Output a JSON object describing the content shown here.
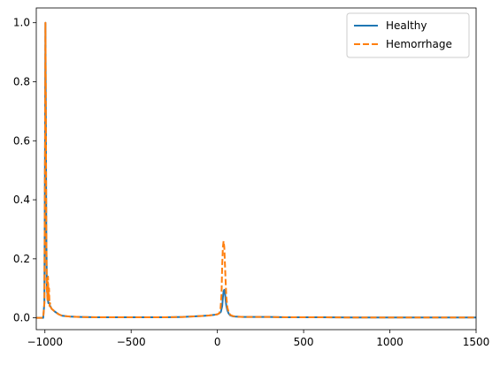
{
  "chart_data": {
    "type": "line",
    "title": "",
    "xlabel": "",
    "ylabel": "",
    "xlim": [
      -1050,
      1500
    ],
    "ylim": [
      -0.04,
      1.05
    ],
    "x_ticks": [
      -1000,
      -500,
      0,
      500,
      1000,
      1500
    ],
    "y_ticks": [
      0.0,
      0.2,
      0.4,
      0.6,
      0.8,
      1.0
    ],
    "x_tick_labels": [
      "−1000",
      "−500",
      "0",
      "500",
      "1000",
      "1500"
    ],
    "y_tick_labels": [
      "0.0",
      "0.2",
      "0.4",
      "0.6",
      "0.8",
      "1.0"
    ],
    "grid": false,
    "legend_position": "top-right",
    "series": [
      {
        "name": "Healthy",
        "color": "#1f77b4",
        "style": "solid",
        "x": [
          -1050,
          -1010,
          -1003,
          -999,
          -997,
          -995,
          -992,
          -989,
          -985,
          -980,
          -975,
          -970,
          -965,
          -960,
          -950,
          -940,
          -920,
          -900,
          -850,
          -800,
          -700,
          -600,
          -500,
          -400,
          -300,
          -200,
          -100,
          -50,
          -20,
          0,
          10,
          20,
          28,
          32,
          36,
          40,
          44,
          48,
          52,
          58,
          65,
          75,
          90,
          110,
          150,
          200,
          300,
          400,
          500,
          600,
          800,
          1000,
          1200,
          1500
        ],
        "y": [
          0.0,
          0.0,
          0.05,
          0.6,
          1.0,
          0.75,
          0.3,
          0.12,
          0.07,
          0.05,
          0.05,
          0.04,
          0.035,
          0.03,
          0.025,
          0.02,
          0.012,
          0.007,
          0.004,
          0.003,
          0.002,
          0.002,
          0.002,
          0.002,
          0.002,
          0.003,
          0.006,
          0.008,
          0.01,
          0.012,
          0.015,
          0.02,
          0.04,
          0.07,
          0.09,
          0.095,
          0.085,
          0.06,
          0.04,
          0.025,
          0.015,
          0.008,
          0.005,
          0.004,
          0.003,
          0.003,
          0.003,
          0.002,
          0.002,
          0.002,
          0.001,
          0.001,
          0.001,
          0.001
        ]
      },
      {
        "name": "Hemorrhage",
        "color": "#ff7f0e",
        "style": "dashed",
        "x": [
          -1050,
          -1010,
          -1003,
          -999,
          -997,
          -995,
          -992,
          -989,
          -985,
          -982,
          -979,
          -976,
          -973,
          -970,
          -965,
          -960,
          -950,
          -940,
          -920,
          -900,
          -850,
          -800,
          -700,
          -600,
          -500,
          -400,
          -300,
          -200,
          -100,
          -50,
          -20,
          0,
          10,
          18,
          24,
          28,
          32,
          36,
          40,
          44,
          48,
          52,
          58,
          65,
          75,
          90,
          110,
          150,
          200,
          300,
          400,
          500,
          600,
          800,
          1000,
          1200,
          1500
        ],
        "y": [
          0.0,
          0.0,
          0.05,
          0.6,
          1.0,
          0.8,
          0.3,
          0.1,
          0.06,
          0.14,
          0.06,
          0.1,
          0.04,
          0.05,
          0.035,
          0.03,
          0.025,
          0.02,
          0.012,
          0.007,
          0.004,
          0.003,
          0.002,
          0.002,
          0.002,
          0.002,
          0.002,
          0.003,
          0.006,
          0.008,
          0.01,
          0.012,
          0.015,
          0.03,
          0.08,
          0.18,
          0.24,
          0.26,
          0.24,
          0.18,
          0.12,
          0.07,
          0.035,
          0.02,
          0.01,
          0.006,
          0.004,
          0.003,
          0.003,
          0.003,
          0.002,
          0.002,
          0.002,
          0.001,
          0.001,
          0.001,
          0.001
        ]
      }
    ]
  }
}
